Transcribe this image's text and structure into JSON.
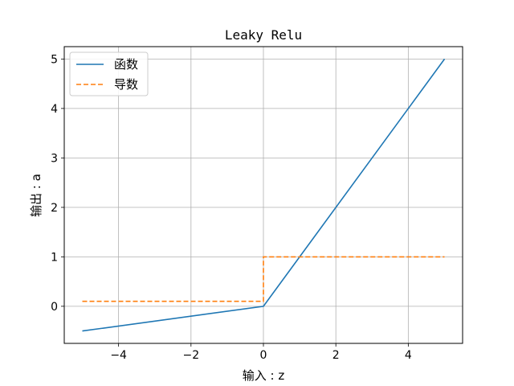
{
  "chart_data": {
    "type": "line",
    "title": "Leaky Relu",
    "xlabel": "输入 : z",
    "ylabel": "输出 : a",
    "xlim": [
      -5.5,
      5.5
    ],
    "ylim": [
      -0.75,
      5.25
    ],
    "xticks": [
      -4,
      -2,
      0,
      2,
      4
    ],
    "xtick_labels": [
      "−4",
      "−2",
      "0",
      "2",
      "4"
    ],
    "yticks": [
      0,
      1,
      2,
      3,
      4,
      5
    ],
    "ytick_labels": [
      "0",
      "1",
      "2",
      "3",
      "4",
      "5"
    ],
    "grid": true,
    "legend_position": "top-left",
    "series": [
      {
        "name": "函数",
        "color": "#1f77b4",
        "style": "solid",
        "x": [
          -5,
          0,
          5
        ],
        "y": [
          -0.5,
          0,
          5
        ]
      },
      {
        "name": "导数",
        "color": "#ff7f0e",
        "style": "dashed",
        "x": [
          -5,
          0,
          0,
          5
        ],
        "y": [
          0.1,
          0.1,
          1,
          1
        ]
      }
    ]
  }
}
